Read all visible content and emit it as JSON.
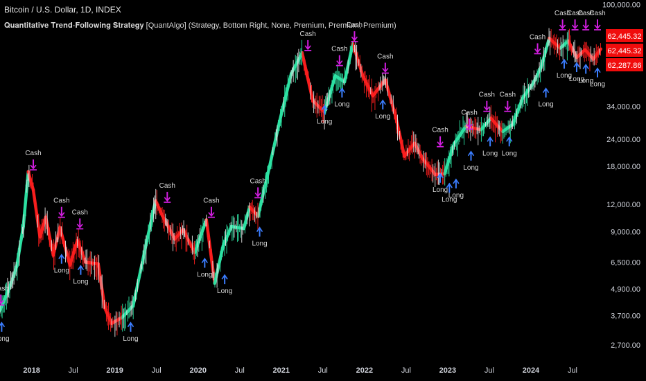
{
  "header": {
    "title": "Bitcoin / U.S. Dollar, 1D, INDEX",
    "subtitle": "𝐐𝐮𝐚𝐧𝐭𝐢𝐭𝐚𝐭𝐢𝐯𝐞 𝐓𝐫𝐞𝐧𝐝-𝐅𝐨𝐥𝐥𝐨𝐰𝐢𝐧𝐠 𝐒𝐭𝐫𝐚𝐭𝐞𝐠𝐲 [QuantAlgo] (Strategy, Bottom Right, None, Premium, Premium, Premium)"
  },
  "colors": {
    "background": "#000000",
    "uptrend": "#2ee6a6",
    "downtrend": "#ff1f1f",
    "cash_signal": "#d21ee0",
    "long_signal": "#3b7dff",
    "price_tag": "#f00c0c"
  },
  "chart_data": {
    "type": "candlestick",
    "title": "Bitcoin / U.S. Dollar, 1D, INDEX",
    "yscale": "log",
    "ylim": [
      2300,
      105000
    ],
    "xlim": [
      2017.62,
      2024.85
    ],
    "y_ticks": [
      "100,000.00",
      "34,000.00",
      "24,000.00",
      "18,000.00",
      "12,000.00",
      "9,000.00",
      "6,500.00",
      "4,900.00",
      "3,700.00",
      "2,700.00"
    ],
    "y_tick_values": [
      100000,
      34000,
      24000,
      18000,
      12000,
      9000,
      6500,
      4900,
      3700,
      2700
    ],
    "x_ticks": [
      "2018",
      "Jul",
      "2019",
      "Jul",
      "2020",
      "Jul",
      "2021",
      "Jul",
      "2022",
      "Jul",
      "2023",
      "Jul",
      "2024",
      "Jul"
    ],
    "x_tick_values": [
      2018.0,
      2018.5,
      2019.0,
      2019.5,
      2020.0,
      2020.5,
      2021.0,
      2021.5,
      2022.0,
      2022.5,
      2023.0,
      2023.5,
      2024.0,
      2024.5
    ],
    "price_series": [
      {
        "x": 2017.62,
        "y": 3900,
        "trend": "down"
      },
      {
        "x": 2017.72,
        "y": 4800,
        "trend": "up"
      },
      {
        "x": 2017.82,
        "y": 6200,
        "trend": "up"
      },
      {
        "x": 2017.9,
        "y": 9500,
        "trend": "up"
      },
      {
        "x": 2017.96,
        "y": 17000,
        "trend": "up"
      },
      {
        "x": 2018.02,
        "y": 14000,
        "trend": "down"
      },
      {
        "x": 2018.1,
        "y": 8500,
        "trend": "down"
      },
      {
        "x": 2018.17,
        "y": 10500,
        "trend": "down"
      },
      {
        "x": 2018.26,
        "y": 7000,
        "trend": "down"
      },
      {
        "x": 2018.34,
        "y": 9400,
        "trend": "down"
      },
      {
        "x": 2018.46,
        "y": 6300,
        "trend": "down"
      },
      {
        "x": 2018.55,
        "y": 8200,
        "trend": "down"
      },
      {
        "x": 2018.65,
        "y": 6500,
        "trend": "down"
      },
      {
        "x": 2018.8,
        "y": 6400,
        "trend": "down"
      },
      {
        "x": 2018.88,
        "y": 4000,
        "trend": "down"
      },
      {
        "x": 2018.96,
        "y": 3400,
        "trend": "down"
      },
      {
        "x": 2019.08,
        "y": 3600,
        "trend": "down"
      },
      {
        "x": 2019.22,
        "y": 4100,
        "trend": "up"
      },
      {
        "x": 2019.38,
        "y": 8000,
        "trend": "up"
      },
      {
        "x": 2019.49,
        "y": 12500,
        "trend": "up"
      },
      {
        "x": 2019.58,
        "y": 10500,
        "trend": "down"
      },
      {
        "x": 2019.72,
        "y": 8300,
        "trend": "down"
      },
      {
        "x": 2019.82,
        "y": 9200,
        "trend": "down"
      },
      {
        "x": 2019.96,
        "y": 7200,
        "trend": "down"
      },
      {
        "x": 2020.1,
        "y": 10200,
        "trend": "up"
      },
      {
        "x": 2020.2,
        "y": 5200,
        "trend": "down"
      },
      {
        "x": 2020.3,
        "y": 7700,
        "trend": "up"
      },
      {
        "x": 2020.4,
        "y": 9500,
        "trend": "up"
      },
      {
        "x": 2020.55,
        "y": 9300,
        "trend": "up"
      },
      {
        "x": 2020.62,
        "y": 11700,
        "trend": "up"
      },
      {
        "x": 2020.72,
        "y": 10600,
        "trend": "down"
      },
      {
        "x": 2020.86,
        "y": 18000,
        "trend": "up"
      },
      {
        "x": 2020.98,
        "y": 29000,
        "trend": "up"
      },
      {
        "x": 2021.12,
        "y": 48000,
        "trend": "up"
      },
      {
        "x": 2021.25,
        "y": 60000,
        "trend": "up"
      },
      {
        "x": 2021.38,
        "y": 36000,
        "trend": "down"
      },
      {
        "x": 2021.52,
        "y": 32000,
        "trend": "down"
      },
      {
        "x": 2021.65,
        "y": 47000,
        "trend": "up"
      },
      {
        "x": 2021.76,
        "y": 44000,
        "trend": "up"
      },
      {
        "x": 2021.86,
        "y": 66000,
        "trend": "up"
      },
      {
        "x": 2021.98,
        "y": 47000,
        "trend": "down"
      },
      {
        "x": 2022.1,
        "y": 38000,
        "trend": "down"
      },
      {
        "x": 2022.25,
        "y": 45000,
        "trend": "down"
      },
      {
        "x": 2022.38,
        "y": 30000,
        "trend": "down"
      },
      {
        "x": 2022.48,
        "y": 20000,
        "trend": "down"
      },
      {
        "x": 2022.6,
        "y": 23000,
        "trend": "down"
      },
      {
        "x": 2022.7,
        "y": 19500,
        "trend": "down"
      },
      {
        "x": 2022.85,
        "y": 16500,
        "trend": "down"
      },
      {
        "x": 2022.96,
        "y": 16600,
        "trend": "down"
      },
      {
        "x": 2023.08,
        "y": 23000,
        "trend": "up"
      },
      {
        "x": 2023.22,
        "y": 27500,
        "trend": "up"
      },
      {
        "x": 2023.4,
        "y": 26500,
        "trend": "down"
      },
      {
        "x": 2023.52,
        "y": 30000,
        "trend": "up"
      },
      {
        "x": 2023.66,
        "y": 26000,
        "trend": "down"
      },
      {
        "x": 2023.78,
        "y": 28000,
        "trend": "up"
      },
      {
        "x": 2023.9,
        "y": 37000,
        "trend": "up"
      },
      {
        "x": 2024.02,
        "y": 43000,
        "trend": "up"
      },
      {
        "x": 2024.12,
        "y": 51000,
        "trend": "up"
      },
      {
        "x": 2024.22,
        "y": 70000,
        "trend": "up"
      },
      {
        "x": 2024.35,
        "y": 63000,
        "trend": "down"
      },
      {
        "x": 2024.45,
        "y": 68000,
        "trend": "up"
      },
      {
        "x": 2024.55,
        "y": 57000,
        "trend": "down"
      },
      {
        "x": 2024.65,
        "y": 62000,
        "trend": "down"
      },
      {
        "x": 2024.75,
        "y": 56000,
        "trend": "down"
      },
      {
        "x": 2024.84,
        "y": 62445,
        "trend": "down"
      }
    ],
    "signals": [
      {
        "type": "cash",
        "label": "Cash",
        "x": 2017.63,
        "y": 4100
      },
      {
        "type": "long",
        "label": "Long",
        "x": 2017.64,
        "y": 3500
      },
      {
        "type": "cash",
        "label": "Cash",
        "x": 2018.02,
        "y": 17200
      },
      {
        "type": "cash",
        "label": "Cash",
        "x": 2018.36,
        "y": 10400
      },
      {
        "type": "long",
        "label": "Long",
        "x": 2018.36,
        "y": 7200
      },
      {
        "type": "cash",
        "label": "Cash",
        "x": 2018.58,
        "y": 9200
      },
      {
        "type": "long",
        "label": "Long",
        "x": 2018.59,
        "y": 6400
      },
      {
        "type": "long",
        "label": "Long",
        "x": 2019.19,
        "y": 3500
      },
      {
        "type": "cash",
        "label": "Cash",
        "x": 2019.63,
        "y": 12200
      },
      {
        "type": "cash",
        "label": "Cash",
        "x": 2020.16,
        "y": 10400
      },
      {
        "type": "long",
        "label": "Long",
        "x": 2020.08,
        "y": 6900
      },
      {
        "type": "long",
        "label": "Long",
        "x": 2020.32,
        "y": 5800
      },
      {
        "type": "cash",
        "label": "Cash",
        "x": 2020.72,
        "y": 12800
      },
      {
        "type": "long",
        "label": "Long",
        "x": 2020.74,
        "y": 9600
      },
      {
        "type": "cash",
        "label": "Cash",
        "x": 2021.32,
        "y": 61000
      },
      {
        "type": "long",
        "label": "Long",
        "x": 2021.52,
        "y": 35000
      },
      {
        "type": "cash",
        "label": "Cash",
        "x": 2021.7,
        "y": 52000
      },
      {
        "type": "long",
        "label": "Long",
        "x": 2021.73,
        "y": 42000
      },
      {
        "type": "cash",
        "label": "Cash",
        "x": 2021.88,
        "y": 67000
      },
      {
        "type": "cash",
        "label": "Cash",
        "x": 2022.25,
        "y": 48000
      },
      {
        "type": "long",
        "label": "Long",
        "x": 2022.22,
        "y": 37000
      },
      {
        "type": "cash",
        "label": "Cash",
        "x": 2022.91,
        "y": 22000
      },
      {
        "type": "long",
        "label": "Long",
        "x": 2022.91,
        "y": 17000
      },
      {
        "type": "long",
        "label": "Long",
        "x": 2023.02,
        "y": 15300
      },
      {
        "type": "long",
        "label": "Long",
        "x": 2023.1,
        "y": 16000
      },
      {
        "type": "cash",
        "label": "Cash",
        "x": 2023.26,
        "y": 26500
      },
      {
        "type": "long",
        "label": "Long",
        "x": 2023.28,
        "y": 21500
      },
      {
        "type": "cash",
        "label": "Cash",
        "x": 2023.47,
        "y": 32000
      },
      {
        "type": "long",
        "label": "Long",
        "x": 2023.51,
        "y": 25000
      },
      {
        "type": "cash",
        "label": "Cash",
        "x": 2023.72,
        "y": 32000
      },
      {
        "type": "long",
        "label": "Long",
        "x": 2023.74,
        "y": 25000
      },
      {
        "type": "long",
        "label": "Long",
        "x": 2024.18,
        "y": 42000
      },
      {
        "type": "cash",
        "label": "Cash",
        "x": 2024.08,
        "y": 59000
      },
      {
        "type": "cash",
        "label": "Cash",
        "x": 2024.38,
        "y": 76000
      },
      {
        "type": "long",
        "label": "Long",
        "x": 2024.4,
        "y": 57000
      },
      {
        "type": "cash",
        "label": "Cash",
        "x": 2024.53,
        "y": 76000
      },
      {
        "type": "long",
        "label": "Long",
        "x": 2024.55,
        "y": 55000
      },
      {
        "type": "cash",
        "label": "Cash",
        "x": 2024.66,
        "y": 76000
      },
      {
        "type": "long",
        "label": "Long",
        "x": 2024.66,
        "y": 54000
      },
      {
        "type": "cash",
        "label": "Cash",
        "x": 2024.8,
        "y": 76000
      },
      {
        "type": "long",
        "label": "Long",
        "x": 2024.8,
        "y": 52000
      }
    ],
    "price_tags": [
      {
        "label": "62,445.32",
        "value": 62445.32
      },
      {
        "label": "62,445.32",
        "value": 62445.32
      },
      {
        "label": "62,287.86",
        "value": 62287.86
      }
    ]
  }
}
